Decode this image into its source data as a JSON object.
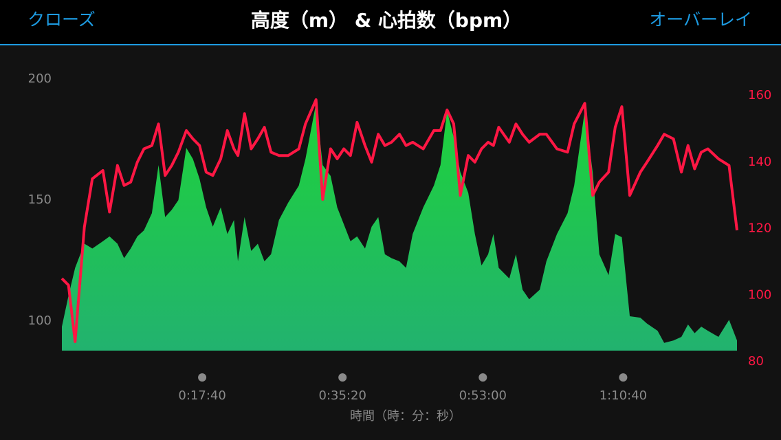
{
  "header": {
    "close": "クローズ",
    "overlay": "オーバーレイ"
  },
  "chart_data": {
    "type": "area-line",
    "title": "高度（m） & 心拍数（bpm）",
    "xlabel": "時間（時：分：秒）",
    "x": [
      0,
      50,
      100,
      170,
      230,
      310,
      360,
      420,
      470,
      520,
      570,
      620,
      680,
      730,
      780,
      830,
      880,
      940,
      990,
      1040,
      1090,
      1140,
      1200,
      1250,
      1300,
      1330,
      1380,
      1430,
      1480,
      1530,
      1580,
      1640,
      1710,
      1790,
      1840,
      1920,
      1970,
      2030,
      2080,
      2130,
      2180,
      2230,
      2290,
      2340,
      2390,
      2440,
      2490,
      2550,
      2600,
      2650,
      2730,
      2810,
      2860,
      2910,
      2960,
      3010,
      3070,
      3120,
      3170,
      3220,
      3260,
      3300,
      3380,
      3430,
      3480,
      3530,
      3610,
      3660,
      3740,
      3820,
      3870,
      3950,
      4010,
      4060,
      4130,
      4180,
      4230,
      4290,
      4370,
      4420,
      4500,
      4550,
      4620,
      4680,
      4730,
      4780,
      4830,
      4880,
      4960,
      5040,
      5100
    ],
    "xlim": [
      0,
      5100
    ],
    "xticks": [
      {
        "value": 1060,
        "label": "0:17:40"
      },
      {
        "value": 2120,
        "label": "0:35:20"
      },
      {
        "value": 3180,
        "label": "0:53:00"
      },
      {
        "value": 4240,
        "label": "1:10:40"
      }
    ],
    "ylim": [
      87.8,
      204.3
    ],
    "yticks": [
      100,
      150,
      200
    ],
    "y2lim": [
      83.3,
      168.1
    ],
    "y2ticks": [
      80,
      100,
      120,
      140,
      160
    ],
    "grid": false,
    "series": [
      {
        "name": "高度",
        "kind": "area",
        "color": "#1ed33a",
        "values": [
          97.7,
          110.5,
          122,
          132,
          130,
          133,
          135,
          132,
          126,
          130,
          135,
          137.5,
          144.6,
          164.5,
          143,
          146,
          150,
          171.6,
          167,
          158.8,
          147,
          139,
          147,
          136,
          141.8,
          124.7,
          143,
          129,
          132,
          124.7,
          127.6,
          141.8,
          149,
          156,
          167,
          190,
          164.5,
          160,
          147,
          140,
          133,
          135,
          130,
          139,
          143,
          127.6,
          126,
          124.7,
          122,
          136,
          147,
          156,
          164.5,
          187,
          176,
          161.6,
          153,
          136,
          123,
          127.6,
          136,
          122,
          117.6,
          127.6,
          113,
          109,
          113,
          124.7,
          136,
          144.6,
          156,
          187,
          161.6,
          127.6,
          119,
          136,
          134.7,
          102,
          101.4,
          99,
          96,
          91,
          92,
          93.5,
          98.6,
          95,
          97.7,
          96,
          93.5,
          100.5,
          92
        ]
      },
      {
        "name": "心拍数",
        "kind": "line",
        "axis": "y2",
        "color": "#ff1744",
        "values": [
          105,
          103,
          86,
          120.5,
          135,
          137.5,
          125,
          139,
          133,
          134,
          140,
          144,
          145,
          151.5,
          136,
          139,
          143,
          149.5,
          147,
          145,
          137,
          136,
          141,
          149.5,
          144,
          142,
          154.6,
          144,
          147,
          150.5,
          143,
          142,
          142,
          144,
          151.5,
          158.8,
          128.8,
          144,
          141,
          144,
          142,
          152,
          145,
          140,
          148.4,
          145,
          146,
          148.4,
          145,
          146,
          144,
          149.5,
          149.5,
          155.7,
          151.5,
          130,
          142,
          140,
          144,
          146,
          145,
          150.5,
          146,
          151.5,
          148.4,
          146,
          148.4,
          148.4,
          144,
          143,
          151.5,
          157.7,
          130,
          134,
          137,
          150.5,
          156.7,
          130,
          137,
          140,
          145,
          148.4,
          147,
          137,
          145,
          138,
          143,
          144,
          141,
          139,
          119.5
        ]
      }
    ]
  }
}
